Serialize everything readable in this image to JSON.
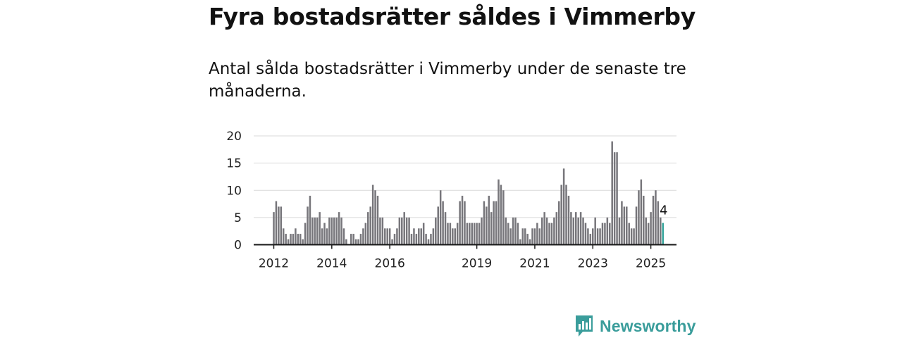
{
  "header": {
    "title": "Fyra bostadsrätter såldes i Vimmerby",
    "subtitle": "Antal sålda bostadsrätter i Vimmerby under de senaste tre månaderna."
  },
  "brand": {
    "name": "Newsworthy",
    "icon": "bar-chart-speech-bubble-icon",
    "color": "#3a9d9b"
  },
  "chart_data": {
    "type": "bar",
    "x_unit": "month",
    "start_month": "2012-01",
    "values": [
      6,
      8,
      7,
      7,
      3,
      2,
      1,
      2,
      2,
      3,
      2,
      2,
      1,
      4,
      7,
      9,
      5,
      5,
      5,
      6,
      3,
      4,
      3,
      5,
      5,
      5,
      5,
      6,
      5,
      3,
      1,
      0,
      2,
      2,
      1,
      1,
      2,
      3,
      4,
      6,
      7,
      11,
      10,
      9,
      5,
      5,
      3,
      3,
      3,
      1,
      2,
      3,
      5,
      5,
      6,
      5,
      5,
      2,
      3,
      2,
      3,
      3,
      4,
      2,
      1,
      2,
      3,
      5,
      7,
      10,
      8,
      6,
      4,
      4,
      3,
      3,
      4,
      8,
      9,
      8,
      4,
      4,
      4,
      4,
      4,
      4,
      5,
      8,
      7,
      9,
      6,
      8,
      8,
      12,
      11,
      10,
      5,
      4,
      3,
      5,
      5,
      4,
      1,
      3,
      3,
      2,
      1,
      3,
      3,
      4,
      3,
      5,
      6,
      5,
      4,
      4,
      5,
      6,
      8,
      11,
      14,
      11,
      9,
      6,
      5,
      6,
      5,
      6,
      5,
      4,
      3,
      2,
      3,
      5,
      3,
      3,
      4,
      4,
      5,
      4,
      19,
      17,
      17,
      5,
      8,
      7,
      7,
      4,
      3,
      3,
      7,
      10,
      12,
      9,
      5,
      4,
      6,
      9,
      10,
      8,
      5,
      4
    ],
    "highlight_index": 161,
    "highlight_label": "4",
    "ylim": [
      0,
      20
    ],
    "yticks": [
      0,
      5,
      10,
      15,
      20
    ],
    "xtick_labels": [
      {
        "label": "2012",
        "month": "2012-01"
      },
      {
        "label": "2014",
        "month": "2014-01"
      },
      {
        "label": "2016",
        "month": "2016-01"
      },
      {
        "label": "2019",
        "month": "2019-01"
      },
      {
        "label": "2021",
        "month": "2021-01"
      },
      {
        "label": "2023",
        "month": "2023-01"
      },
      {
        "label": "2025",
        "month": "2025-01"
      }
    ],
    "grid": true,
    "colors": {
      "bar": "#77767b",
      "highlight": "#34a39a",
      "grid": "#d9d9d9",
      "axis": "#1a1a1a"
    }
  }
}
